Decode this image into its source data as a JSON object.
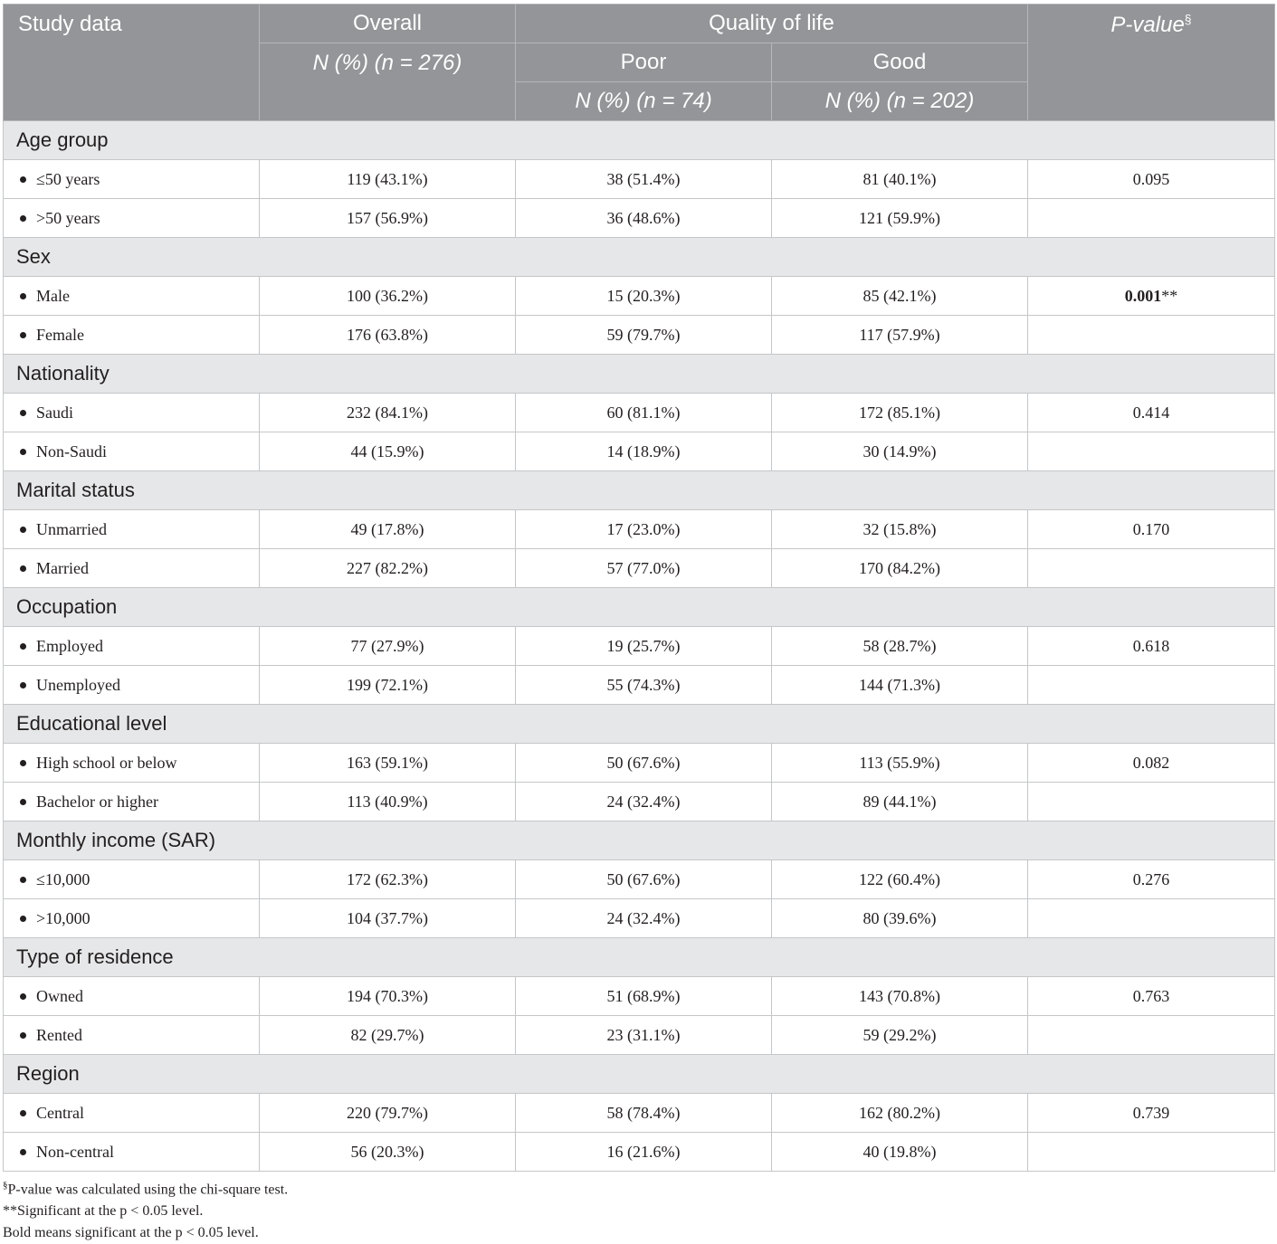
{
  "header": {
    "study_data": "Study data",
    "overall": "Overall",
    "overall_sub": "N (%) (n = 276)",
    "quality_of_life": "Quality of life",
    "poor": "Poor",
    "poor_sub": "N (%) (n = 74)",
    "good": "Good",
    "good_sub": "N (%) (n = 202)",
    "pvalue": "P-value",
    "pvalue_mark": "§"
  },
  "groups": [
    {
      "name": "Age group",
      "rows": [
        {
          "label": "≤50 years",
          "overall": "119 (43.1%)",
          "poor": "38 (51.4%)",
          "good": "81 (40.1%)",
          "p": "0.095",
          "p_bold": false
        },
        {
          "label": ">50 years",
          "overall": "157 (56.9%)",
          "poor": "36 (48.6%)",
          "good": "121 (59.9%)",
          "p": "",
          "p_bold": false
        }
      ]
    },
    {
      "name": "Sex",
      "rows": [
        {
          "label": "Male",
          "overall": "100 (36.2%)",
          "poor": "15 (20.3%)",
          "good": "85 (42.1%)",
          "p": "0.001",
          "p_suffix": "**",
          "p_bold": true
        },
        {
          "label": "Female",
          "overall": "176 (63.8%)",
          "poor": "59 (79.7%)",
          "good": "117 (57.9%)",
          "p": "",
          "p_bold": false
        }
      ]
    },
    {
      "name": "Nationality",
      "rows": [
        {
          "label": "Saudi",
          "overall": "232 (84.1%)",
          "poor": "60 (81.1%)",
          "good": "172 (85.1%)",
          "p": "0.414",
          "p_bold": false
        },
        {
          "label": "Non-Saudi",
          "overall": "44 (15.9%)",
          "poor": "14 (18.9%)",
          "good": "30 (14.9%)",
          "p": "",
          "p_bold": false
        }
      ]
    },
    {
      "name": "Marital status",
      "rows": [
        {
          "label": "Unmarried",
          "overall": "49 (17.8%)",
          "poor": "17 (23.0%)",
          "good": "32 (15.8%)",
          "p": "0.170",
          "p_bold": false
        },
        {
          "label": "Married",
          "overall": "227 (82.2%)",
          "poor": "57 (77.0%)",
          "good": "170 (84.2%)",
          "p": "",
          "p_bold": false
        }
      ]
    },
    {
      "name": "Occupation",
      "rows": [
        {
          "label": "Employed",
          "overall": "77 (27.9%)",
          "poor": "19 (25.7%)",
          "good": "58 (28.7%)",
          "p": "0.618",
          "p_bold": false
        },
        {
          "label": "Unemployed",
          "overall": "199 (72.1%)",
          "poor": "55 (74.3%)",
          "good": "144 (71.3%)",
          "p": "",
          "p_bold": false
        }
      ]
    },
    {
      "name": "Educational level",
      "rows": [
        {
          "label": "High school or below",
          "overall": "163 (59.1%)",
          "poor": "50 (67.6%)",
          "good": "113 (55.9%)",
          "p": "0.082",
          "p_bold": false
        },
        {
          "label": "Bachelor or higher",
          "overall": "113 (40.9%)",
          "poor": "24 (32.4%)",
          "good": "89 (44.1%)",
          "p": "",
          "p_bold": false
        }
      ]
    },
    {
      "name": "Monthly income (SAR)",
      "rows": [
        {
          "label": "≤10,000",
          "overall": "172 (62.3%)",
          "poor": "50 (67.6%)",
          "good": "122 (60.4%)",
          "p": "0.276",
          "p_bold": false
        },
        {
          "label": ">10,000",
          "overall": "104 (37.7%)",
          "poor": "24 (32.4%)",
          "good": "80 (39.6%)",
          "p": "",
          "p_bold": false
        }
      ]
    },
    {
      "name": "Type of residence",
      "rows": [
        {
          "label": "Owned",
          "overall": "194 (70.3%)",
          "poor": "51 (68.9%)",
          "good": "143 (70.8%)",
          "p": "0.763",
          "p_bold": false
        },
        {
          "label": "Rented",
          "overall": "82 (29.7%)",
          "poor": "23 (31.1%)",
          "good": "59 (29.2%)",
          "p": "",
          "p_bold": false
        }
      ]
    },
    {
      "name": "Region",
      "rows": [
        {
          "label": "Central",
          "overall": "220 (79.7%)",
          "poor": "58 (78.4%)",
          "good": "162 (80.2%)",
          "p": "0.739",
          "p_bold": false
        },
        {
          "label": "Non-central",
          "overall": "56 (20.3%)",
          "poor": "16 (21.6%)",
          "good": "40 (19.8%)",
          "p": "",
          "p_bold": false
        }
      ]
    }
  ],
  "footnotes": {
    "note1_mark": "§",
    "note1_text": "P-value was calculated using the chi-square test.",
    "note2": "**Significant at the p < 0.05 level.",
    "note3": "Bold means significant at the p < 0.05 level."
  }
}
